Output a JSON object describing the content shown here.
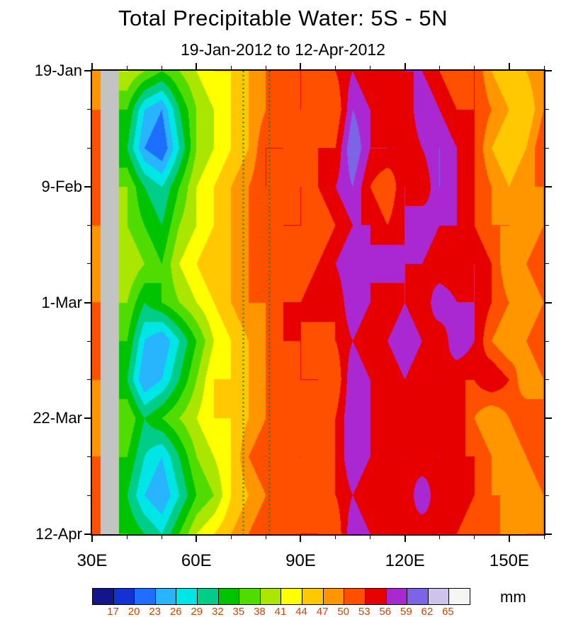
{
  "title": "Total Precipitable Water: 5S - 5N",
  "subtitle": "19-Jan-2012 to 12-Apr-2012",
  "units_label": "mm",
  "chart_data": {
    "type": "heatmap",
    "title": "Total Precipitable Water: 5S - 5N",
    "subtitle": "19-Jan-2012 to 12-Apr-2012",
    "units": "mm",
    "x_name": "longitude_degrees_east",
    "y_name": "date",
    "lon_range": [
      30,
      160
    ],
    "x": [
      30,
      35,
      40,
      45,
      50,
      55,
      60,
      65,
      70,
      75,
      80,
      85,
      90,
      95,
      100,
      105,
      110,
      115,
      120,
      125,
      130,
      135,
      140,
      145,
      150,
      155,
      160
    ],
    "y": [
      "19-Jan",
      "26-Jan",
      "2-Feb",
      "9-Feb",
      "16-Feb",
      "23-Feb",
      "1-Mar",
      "8-Mar",
      "15-Mar",
      "22-Mar",
      "29-Mar",
      "5-Apr",
      "12-Apr"
    ],
    "values": [
      [
        47,
        null,
        41,
        38,
        35,
        38,
        41,
        44,
        44,
        47,
        50,
        50,
        53,
        50,
        53,
        56,
        53,
        53,
        56,
        56,
        53,
        50,
        53,
        47,
        44,
        47,
        50
      ],
      [
        50,
        null,
        35,
        26,
        23,
        32,
        38,
        41,
        44,
        47,
        50,
        53,
        53,
        53,
        50,
        59,
        56,
        53,
        53,
        59,
        56,
        53,
        53,
        50,
        47,
        44,
        50
      ],
      [
        50,
        null,
        32,
        23,
        20,
        29,
        38,
        41,
        44,
        47,
        53,
        53,
        50,
        53,
        53,
        62,
        56,
        56,
        53,
        56,
        59,
        56,
        53,
        47,
        44,
        47,
        53
      ],
      [
        53,
        null,
        38,
        32,
        29,
        35,
        41,
        44,
        47,
        50,
        53,
        50,
        53,
        53,
        56,
        59,
        53,
        50,
        56,
        53,
        59,
        56,
        53,
        50,
        47,
        50,
        50
      ],
      [
        50,
        null,
        38,
        35,
        32,
        38,
        41,
        44,
        47,
        50,
        50,
        53,
        53,
        50,
        53,
        56,
        56,
        53,
        56,
        59,
        56,
        56,
        53,
        50,
        50,
        47,
        50
      ],
      [
        47,
        null,
        41,
        38,
        35,
        41,
        44,
        47,
        47,
        50,
        53,
        53,
        50,
        53,
        56,
        59,
        56,
        59,
        56,
        56,
        53,
        53,
        56,
        53,
        47,
        50,
        53
      ],
      [
        50,
        null,
        38,
        32,
        35,
        38,
        41,
        44,
        47,
        50,
        50,
        53,
        53,
        56,
        53,
        59,
        56,
        53,
        56,
        53,
        59,
        56,
        56,
        53,
        50,
        47,
        50
      ],
      [
        53,
        null,
        35,
        26,
        23,
        29,
        35,
        41,
        44,
        47,
        50,
        53,
        53,
        50,
        53,
        56,
        53,
        56,
        59,
        56,
        53,
        59,
        56,
        50,
        47,
        50,
        53
      ],
      [
        50,
        null,
        32,
        23,
        26,
        32,
        38,
        44,
        44,
        47,
        50,
        50,
        53,
        53,
        50,
        59,
        56,
        53,
        56,
        53,
        56,
        53,
        53,
        56,
        53,
        47,
        50
      ],
      [
        47,
        null,
        38,
        32,
        35,
        38,
        41,
        44,
        44,
        47,
        50,
        53,
        50,
        53,
        53,
        59,
        56,
        56,
        53,
        56,
        53,
        56,
        50,
        47,
        50,
        53,
        50
      ],
      [
        50,
        null,
        35,
        29,
        26,
        32,
        38,
        41,
        44,
        50,
        53,
        50,
        53,
        50,
        53,
        59,
        56,
        53,
        56,
        53,
        56,
        53,
        53,
        50,
        47,
        50,
        53
      ],
      [
        53,
        null,
        32,
        26,
        23,
        29,
        35,
        38,
        44,
        47,
        50,
        53,
        50,
        53,
        53,
        56,
        53,
        56,
        53,
        59,
        53,
        56,
        53,
        50,
        50,
        47,
        50
      ],
      [
        50,
        null,
        35,
        32,
        29,
        35,
        41,
        44,
        47,
        50,
        53,
        50,
        53,
        53,
        50,
        59,
        56,
        53,
        56,
        53,
        56,
        53,
        50,
        53,
        47,
        50,
        50
      ]
    ],
    "no_data_color": "#c3c3c3",
    "levels": [
      17,
      20,
      23,
      26,
      29,
      32,
      35,
      38,
      41,
      44,
      47,
      50,
      53,
      56,
      59,
      62,
      65
    ],
    "level_colors": [
      "#14148c",
      "#1432d2",
      "#1e6eff",
      "#28b4ff",
      "#00e6e6",
      "#00cd87",
      "#00c300",
      "#50dc00",
      "#aae600",
      "#ffff00",
      "#ffc800",
      "#ff9600",
      "#ff5000",
      "#e60000",
      "#aa28d2",
      "#7d64e6",
      "#cdc3eb",
      "#f5f5f5"
    ],
    "colorbar_labels": [
      "17",
      "20",
      "23",
      "26",
      "29",
      "32",
      "35",
      "38",
      "41",
      "44",
      "47",
      "50",
      "53",
      "56",
      "59",
      "62",
      "65"
    ],
    "colorbar_label_color": "#cc4400",
    "x_ticks": [
      {
        "label": "30E",
        "lon": 30
      },
      {
        "label": "60E",
        "lon": 60
      },
      {
        "label": "90E",
        "lon": 90
      },
      {
        "label": "120E",
        "lon": 120
      },
      {
        "label": "150E",
        "lon": 150
      }
    ],
    "x_minor_step": 10,
    "y_ticks": [
      {
        "label": "19-Jan",
        "day": 0
      },
      {
        "label": "9-Feb",
        "day": 21
      },
      {
        "label": "1-Mar",
        "day": 42
      },
      {
        "label": "22-Mar",
        "day": 63
      },
      {
        "label": "12-Apr",
        "day": 84
      }
    ],
    "y_minor_step": 7,
    "y_total_days": 84,
    "reference_lines": {
      "color": "#008000",
      "style": "dotted",
      "lons": [
        73.5,
        81
      ]
    }
  }
}
